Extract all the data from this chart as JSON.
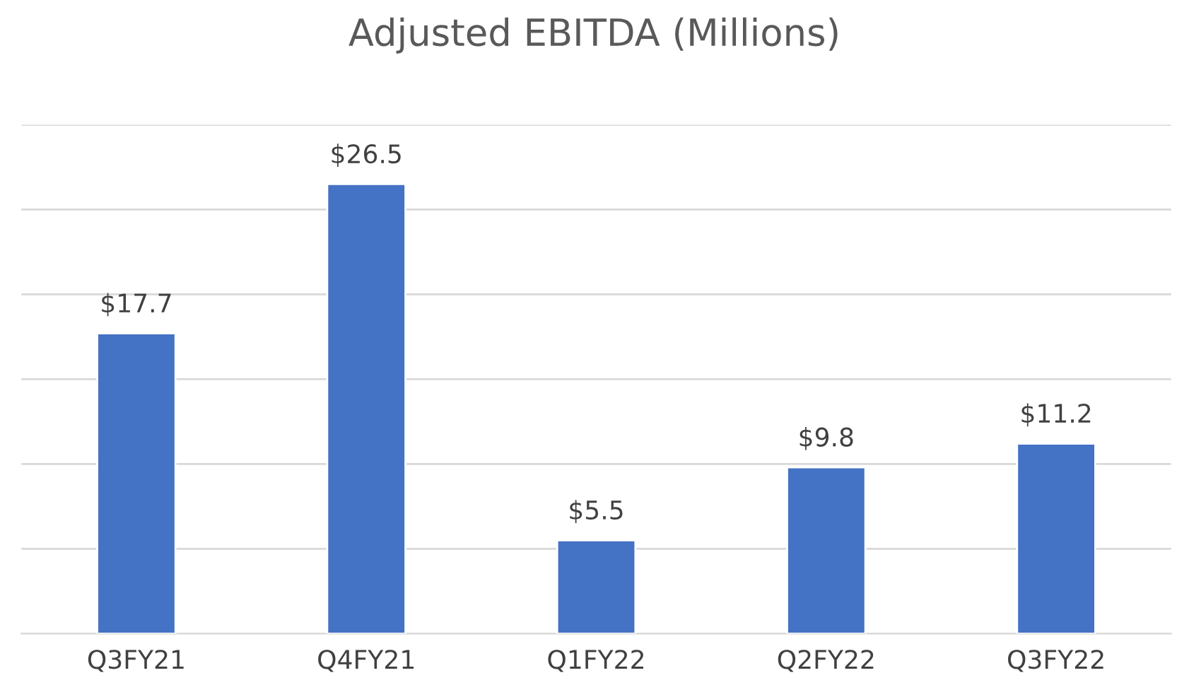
{
  "chart_data": {
    "type": "bar",
    "title": "Adjusted EBITDA (Millions)",
    "categories": [
      "Q3FY21",
      "Q4FY21",
      "Q1FY22",
      "Q2FY22",
      "Q3FY22"
    ],
    "values": [
      17.7,
      26.5,
      5.5,
      9.8,
      11.2
    ],
    "value_labels": [
      "$17.7",
      "$26.5",
      "$5.5",
      "$9.8",
      "$11.2"
    ],
    "color": "#4472c4",
    "ylim": [
      0,
      30
    ],
    "yticks": [
      {
        "value": 0,
        "label": null
      },
      {
        "value": 5,
        "label": null
      },
      {
        "value": 10,
        "label": null
      },
      {
        "value": 15,
        "label": null
      },
      {
        "value": 20,
        "label": null
      },
      {
        "value": 25,
        "label": null
      },
      {
        "value": 30,
        "label": null
      }
    ],
    "tick_labels": "x",
    "grid": "y",
    "legend": false
  }
}
